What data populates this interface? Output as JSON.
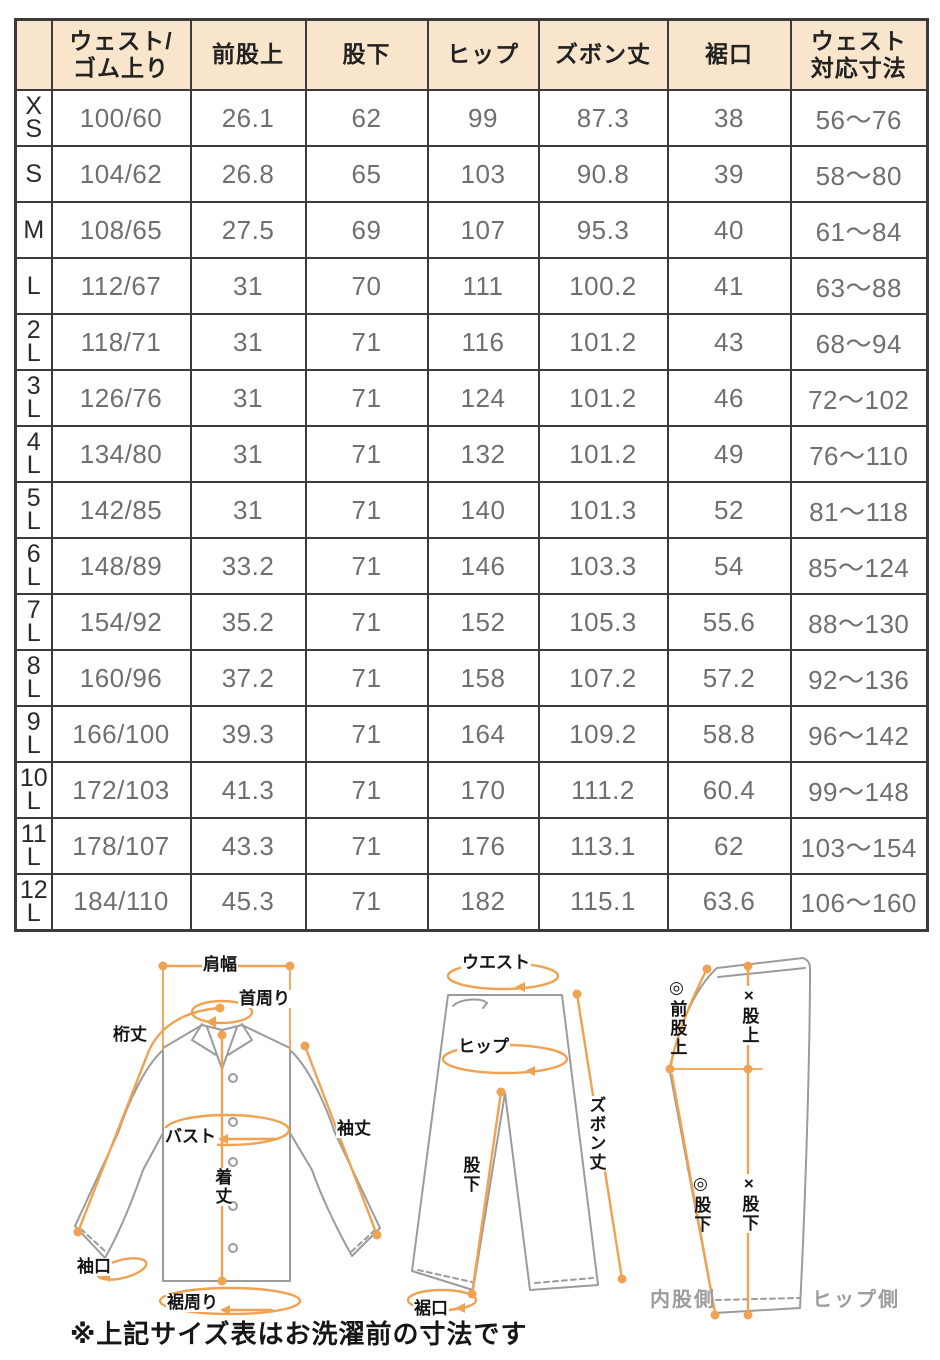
{
  "table": {
    "headers": [
      "",
      "ウェスト/\nゴム上り",
      "前股上",
      "股下",
      "ヒップ",
      "ズボン丈",
      "裾口",
      "ウェスト\n対応寸法"
    ],
    "rows": [
      {
        "size": "X\nS",
        "values": [
          "100/60",
          "26.1",
          "62",
          "99",
          "87.3",
          "38",
          "56～76"
        ]
      },
      {
        "size": "S",
        "values": [
          "104/62",
          "26.8",
          "65",
          "103",
          "90.8",
          "39",
          "58～80"
        ]
      },
      {
        "size": "M",
        "values": [
          "108/65",
          "27.5",
          "69",
          "107",
          "95.3",
          "40",
          "61～84"
        ]
      },
      {
        "size": "L",
        "values": [
          "112/67",
          "31",
          "70",
          "111",
          "100.2",
          "41",
          "63～88"
        ]
      },
      {
        "size": "2\nL",
        "values": [
          "118/71",
          "31",
          "71",
          "116",
          "101.2",
          "43",
          "68～94"
        ]
      },
      {
        "size": "3\nL",
        "values": [
          "126/76",
          "31",
          "71",
          "124",
          "101.2",
          "46",
          "72～102"
        ]
      },
      {
        "size": "4\nL",
        "values": [
          "134/80",
          "31",
          "71",
          "132",
          "101.2",
          "49",
          "76～110"
        ]
      },
      {
        "size": "5\nL",
        "values": [
          "142/85",
          "31",
          "71",
          "140",
          "101.3",
          "52",
          "81～118"
        ]
      },
      {
        "size": "6\nL",
        "values": [
          "148/89",
          "33.2",
          "71",
          "146",
          "103.3",
          "54",
          "85～124"
        ]
      },
      {
        "size": "7\nL",
        "values": [
          "154/92",
          "35.2",
          "71",
          "152",
          "105.3",
          "55.6",
          "88～130"
        ]
      },
      {
        "size": "8\nL",
        "values": [
          "160/96",
          "37.2",
          "71",
          "158",
          "107.2",
          "57.2",
          "92～136"
        ]
      },
      {
        "size": "9\nL",
        "values": [
          "166/100",
          "39.3",
          "71",
          "164",
          "109.2",
          "58.8",
          "96～142"
        ]
      },
      {
        "size": "10\nL",
        "values": [
          "172/103",
          "41.3",
          "71",
          "170",
          "111.2",
          "60.4",
          "99～148"
        ]
      },
      {
        "size": "11\nL",
        "values": [
          "178/107",
          "43.3",
          "71",
          "176",
          "113.1",
          "62",
          "103～154"
        ]
      },
      {
        "size": "12\nL",
        "values": [
          "184/110",
          "45.3",
          "71",
          "182",
          "115.1",
          "63.6",
          "106～160"
        ]
      }
    ]
  },
  "diagrams": {
    "shirt": {
      "shoulder_width": "肩幅",
      "neck_around": "首周り",
      "yuki_length": "桁丈",
      "bust": "バスト",
      "sleeve_length": "袖丈",
      "body_length": "着丈",
      "cuff_opening": "袖口",
      "hem_around": "裾周り"
    },
    "pants_front": {
      "waist": "ウエスト",
      "hip": "ヒップ",
      "inseam": "股下",
      "pants_length": "ズボン丈",
      "hem_opening": "裾口"
    },
    "pants_side": {
      "front_rise": "◎前股上",
      "rise": "×股上",
      "inseam_inner": "◎股下",
      "inseam_side": "×股下",
      "inner_leg_side": "内股側",
      "hip_side": "ヒップ側"
    }
  },
  "note": "※上記サイズ表はお洗濯前の寸法です",
  "colors": {
    "header_bg": "#f8e5cb",
    "table_border": "#3b3b3b",
    "value_text": "#6f6f6f",
    "measure_orange": "#efa251",
    "garment_gray": "#9b9b9b"
  }
}
